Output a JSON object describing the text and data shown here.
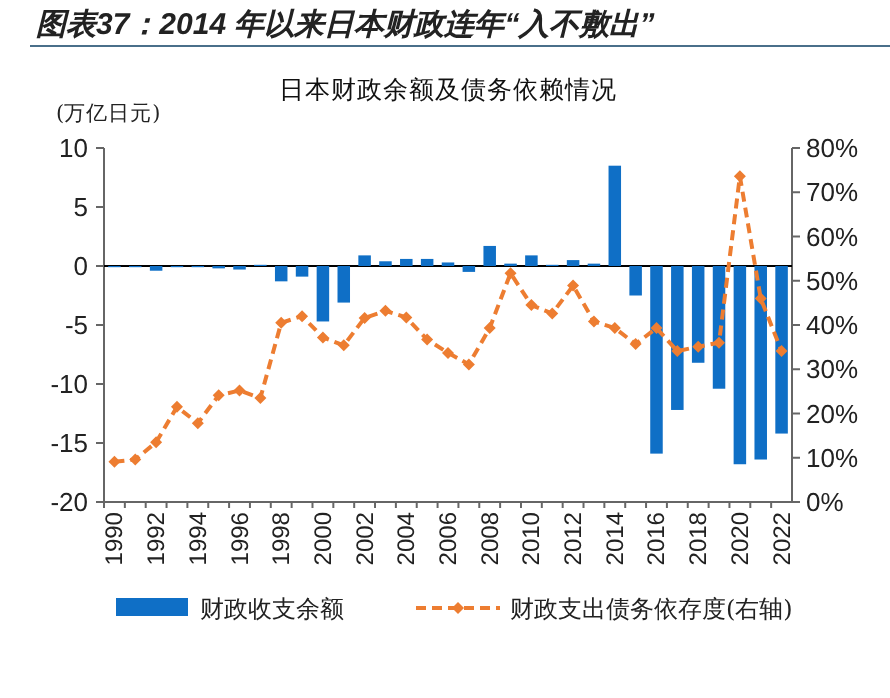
{
  "chart_data": {
    "type": "bar",
    "title": "图表37：2014 年以来日本财政连年“入不敷出”",
    "subtitle": "日本财政余额及债务依赖情况",
    "ylabel": "(万亿日元)",
    "categories": [
      "1990",
      null,
      "1992",
      null,
      "1994",
      null,
      "1996",
      null,
      "1998",
      null,
      "2000",
      null,
      "2002",
      null,
      "2004",
      null,
      "2006",
      null,
      "2008",
      null,
      "2010",
      null,
      "2012",
      null,
      "2014",
      null,
      "2016",
      null,
      "2018",
      null,
      "2020",
      null,
      "2022"
    ],
    "series": [
      {
        "name": "财政收支余额",
        "color": "#0f6fc6",
        "values": [
          -0.1,
          -0.1,
          -0.4,
          -0.1,
          -0.1,
          -0.2,
          -0.3,
          0.1,
          -1.3,
          -0.9,
          -4.7,
          -3.1,
          0.9,
          0.4,
          0.6,
          0.6,
          0.3,
          -0.5,
          1.7,
          0.2,
          0.9,
          0.1,
          0.5,
          0.2,
          8.5,
          -2.5,
          -15.9,
          -12.2,
          -8.2,
          -10.4,
          -16.8,
          -16.4,
          -14.2
        ]
      },
      {
        "name": "财政支出债务依存度(右轴)",
        "type": "line",
        "axis": "y2",
        "color": "#ed7d31",
        "marker": "diamond",
        "line_style": "dashed",
        "values": [
          9.1,
          9.6,
          13.5,
          21.5,
          17.8,
          24.1,
          25.2,
          23.5,
          40.5,
          42.0,
          37.2,
          35.4,
          41.6,
          43.2,
          41.7,
          36.7,
          33.7,
          31.1,
          39.3,
          51.7,
          44.5,
          42.6,
          48.9,
          40.8,
          39.3,
          35.7,
          39.3,
          34.1,
          35.1,
          36.0,
          73.6,
          46.0,
          34.1
        ]
      }
    ],
    "ylim": [
      -20,
      10
    ],
    "yticks": [
      -20,
      -15,
      -10,
      -5,
      0,
      5,
      10
    ],
    "y2lim": [
      0,
      80
    ],
    "y2ticks": [
      {
        "value": 0,
        "label": "0%"
      },
      {
        "value": 10,
        "label": "10%"
      },
      {
        "value": 20,
        "label": "20%"
      },
      {
        "value": 30,
        "label": "30%"
      },
      {
        "value": 40,
        "label": "40%"
      },
      {
        "value": 50,
        "label": "50%"
      },
      {
        "value": 60,
        "label": "60%"
      },
      {
        "value": 70,
        "label": "70%"
      },
      {
        "value": 80,
        "label": "80%"
      }
    ],
    "legend": "bottom"
  }
}
